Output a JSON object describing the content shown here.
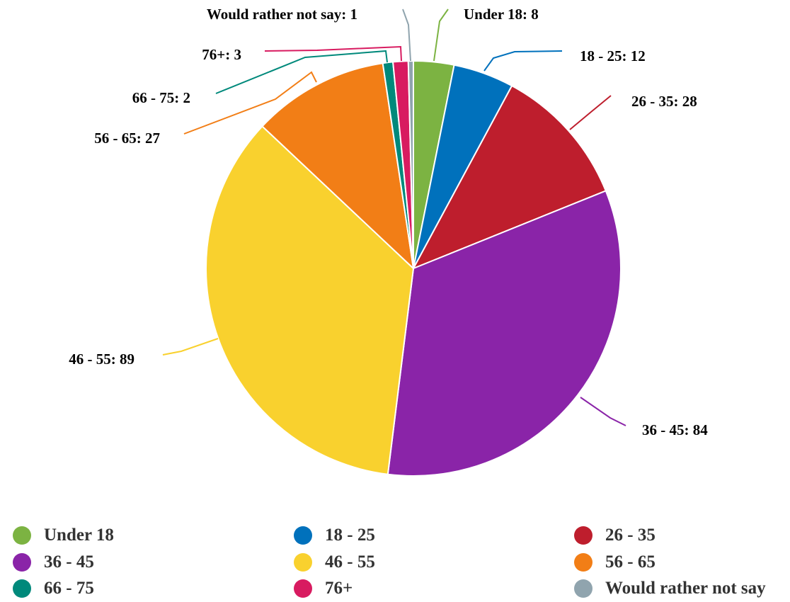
{
  "chart_data": {
    "type": "pie",
    "slices": [
      {
        "label": "Under 18",
        "value": 8,
        "color": "#7cb342",
        "data_label": "Under 18: 8"
      },
      {
        "label": "18 - 25",
        "value": 12,
        "color": "#0071bc",
        "data_label": "18 - 25: 12"
      },
      {
        "label": "26 - 35",
        "value": 28,
        "color": "#be1e2d",
        "data_label": "26 - 35: 28"
      },
      {
        "label": "36 - 45",
        "value": 84,
        "color": "#8a24a8",
        "data_label": "36 - 45: 84"
      },
      {
        "label": "46 - 55",
        "value": 89,
        "color": "#f9d12e",
        "data_label": "46 - 55: 89"
      },
      {
        "label": "56 - 65",
        "value": 27,
        "color": "#f27e16",
        "data_label": "56 - 65: 27"
      },
      {
        "label": "66 - 75",
        "value": 2,
        "color": "#00897b",
        "data_label": "66 - 75: 2"
      },
      {
        "label": "76+",
        "value": 3,
        "color": "#d81b60",
        "data_label": "76+: 3"
      },
      {
        "label": "Would rather not say",
        "value": 1,
        "color": "#90a4ae",
        "data_label": "Would rather not say: 1"
      }
    ],
    "legend_position": "bottom",
    "start_angle": "top (12 o'clock)",
    "direction": "clockwise"
  }
}
